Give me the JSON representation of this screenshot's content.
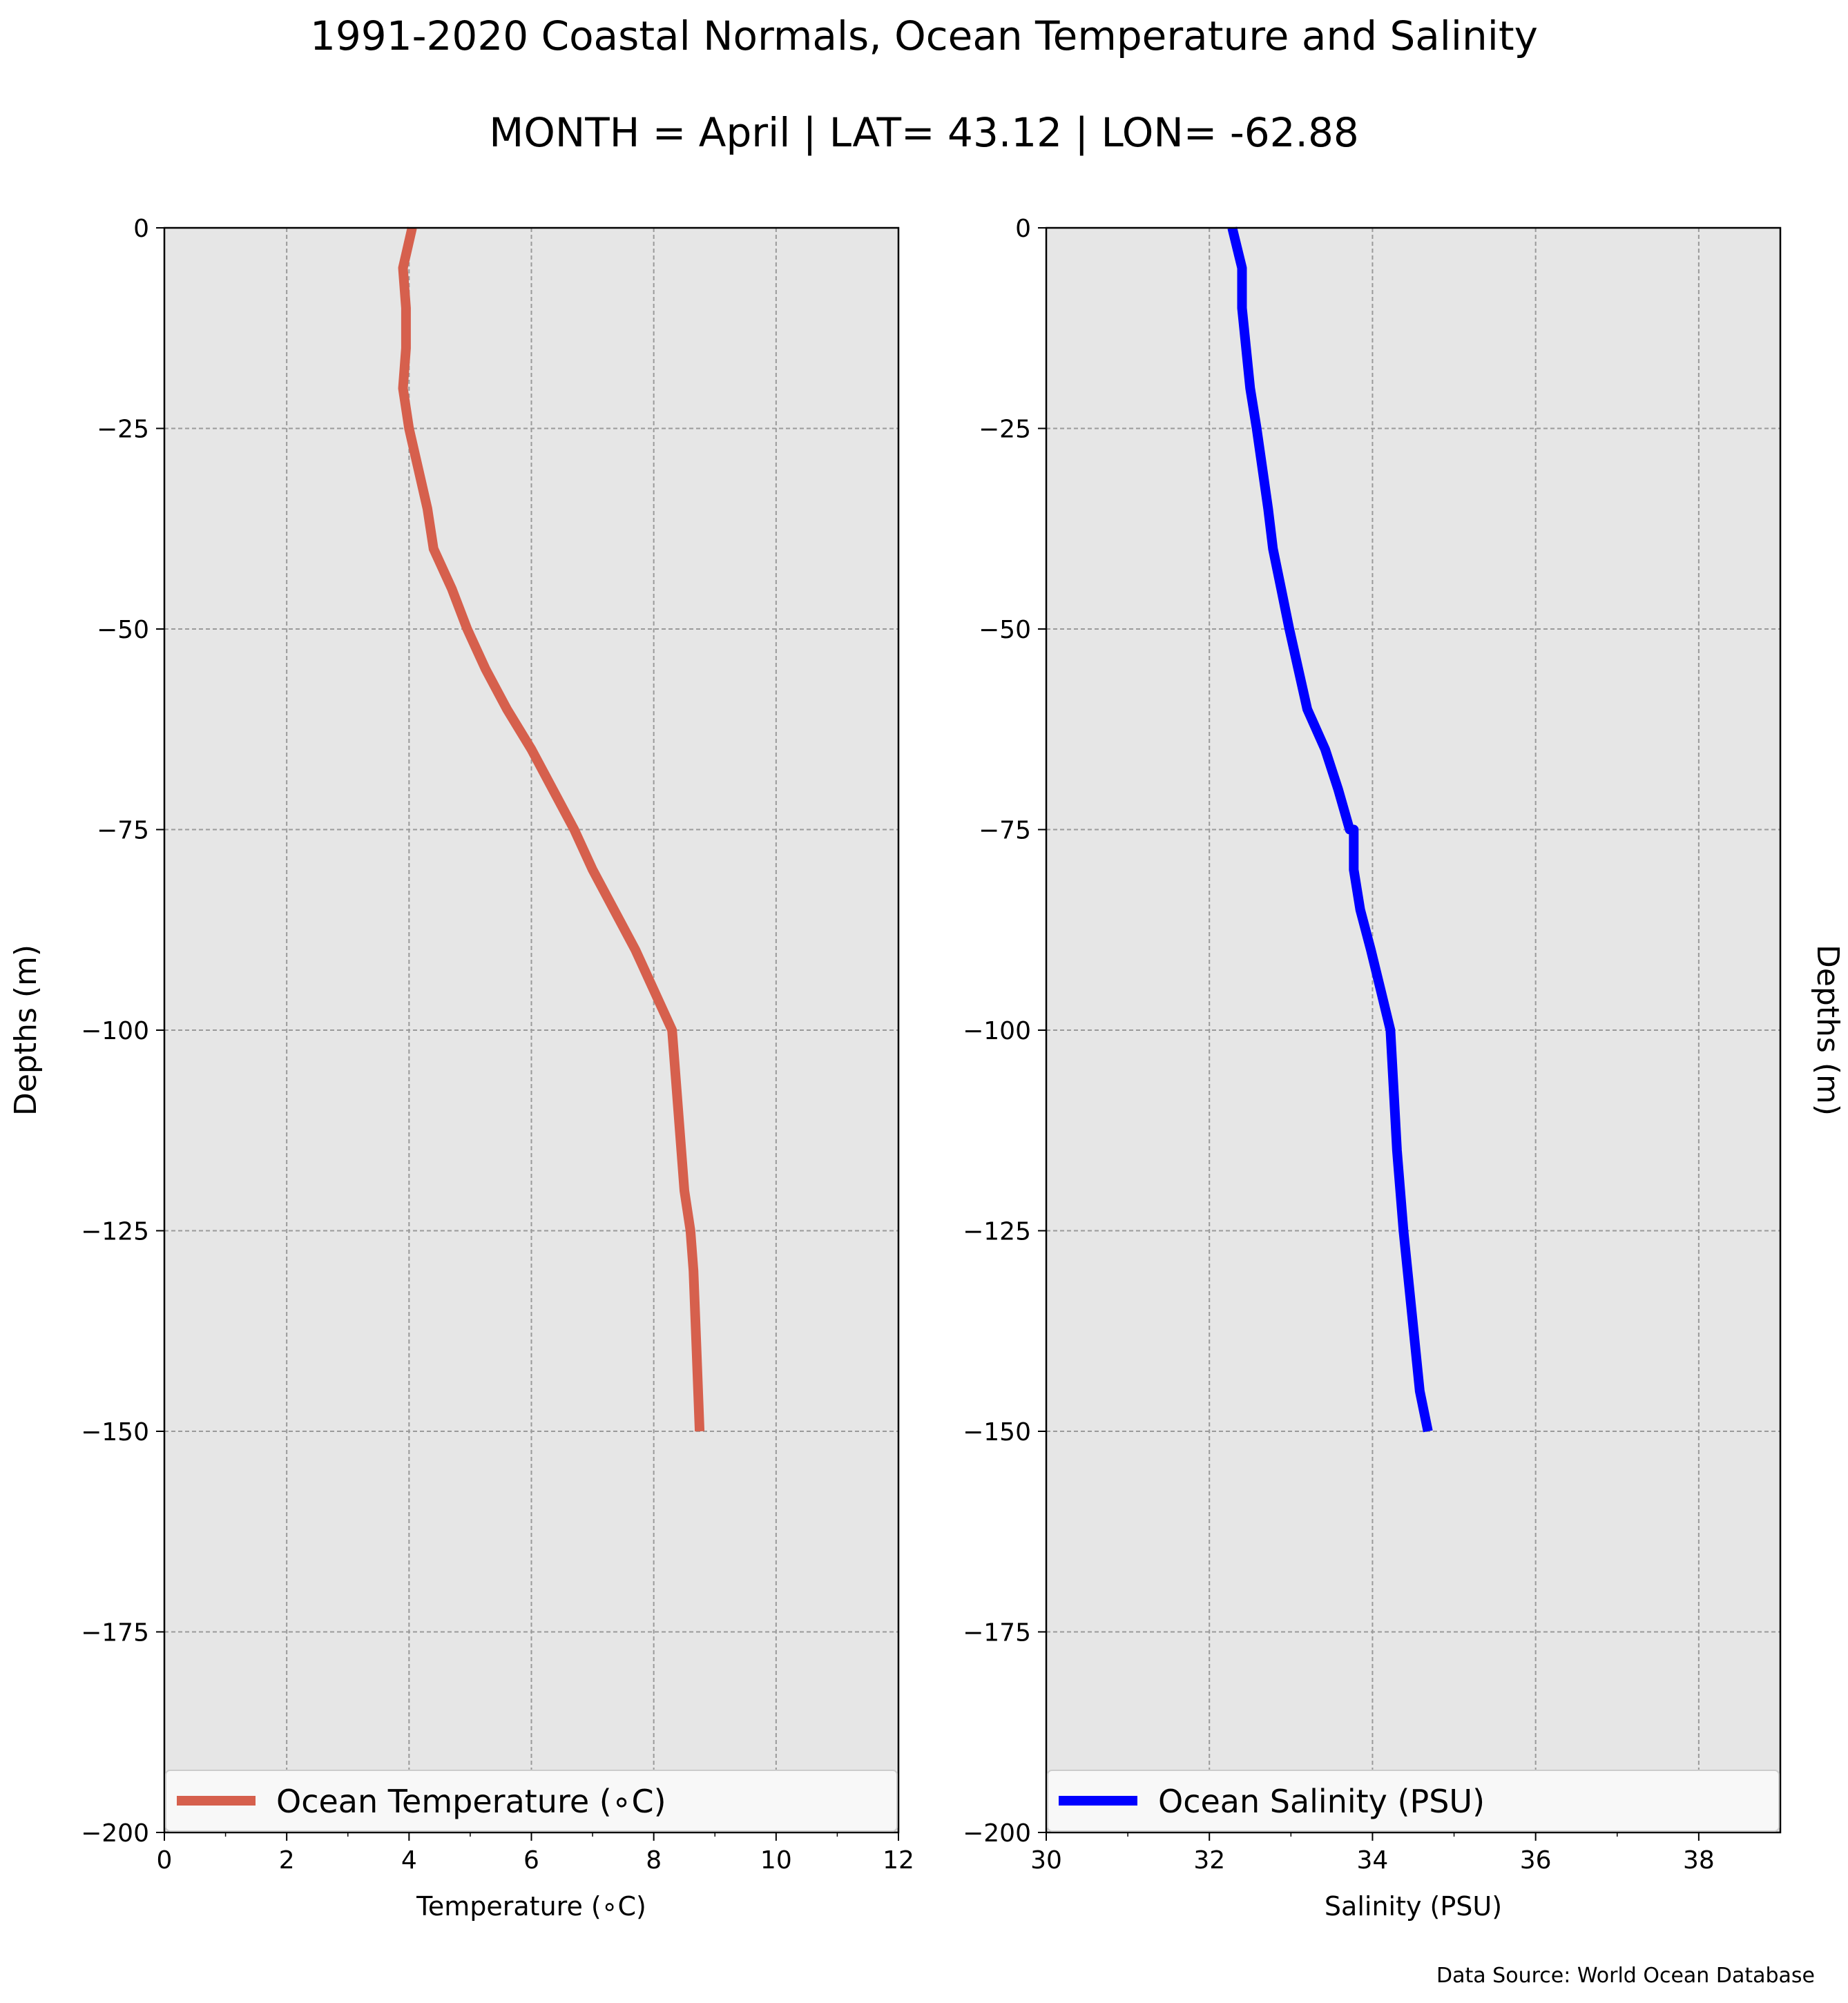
{
  "title": "1991-2020 Coastal Normals, Ocean Temperature and Salinity",
  "subtitle": "MONTH = April | LAT= 43.12 | LON= -62.88",
  "footnote": "Data Source: World Ocean Database",
  "chart_data": [
    {
      "type": "line",
      "xlabel": "Temperature (∘C)",
      "ylabel": "Depths (m)",
      "xlim": [
        0,
        12
      ],
      "ylim": [
        -200,
        0
      ],
      "xticks": [
        "0",
        "2",
        "4",
        "6",
        "8",
        "10",
        "12"
      ],
      "yticks": [
        "0",
        "−25",
        "−50",
        "−75",
        "−100",
        "−125",
        "−150",
        "−175",
        "−200"
      ],
      "grid": true,
      "legend_position": "bottom",
      "series": [
        {
          "name": "Ocean Temperature (∘C)",
          "color": "#d6604d",
          "x": [
            4.05,
            3.9,
            3.95,
            3.95,
            3.9,
            4.0,
            4.15,
            4.3,
            4.4,
            4.7,
            4.95,
            5.25,
            5.6,
            6.0,
            6.35,
            6.7,
            7.0,
            7.35,
            7.7,
            8.0,
            8.3,
            8.4,
            8.5,
            8.6,
            8.65,
            8.7,
            8.75
          ],
          "y": [
            0,
            -5,
            -10,
            -15,
            -20,
            -25,
            -30,
            -35,
            -40,
            -45,
            -50,
            -55,
            -60,
            -65,
            -70,
            -75,
            -80,
            -85,
            -90,
            -95,
            -100,
            -110,
            -120,
            -125,
            -130,
            -140,
            -150
          ]
        }
      ]
    },
    {
      "type": "line",
      "xlabel": "Salinity (PSU)",
      "ylabel": "Depths (m)",
      "xlim": [
        30,
        39
      ],
      "ylim": [
        -200,
        0
      ],
      "xticks": [
        "30",
        "32",
        "34",
        "36",
        "38"
      ],
      "yticks": [
        "0",
        "−25",
        "−50",
        "−75",
        "−100",
        "−125",
        "−150",
        "−175",
        "−200"
      ],
      "grid": true,
      "legend_position": "bottom",
      "series": [
        {
          "name": "Ocean Salinity (PSU)",
          "color": "#0000ff",
          "x": [
            32.28,
            32.4,
            32.4,
            32.45,
            32.5,
            32.58,
            32.65,
            32.72,
            32.78,
            32.88,
            32.98,
            33.09,
            33.2,
            33.42,
            33.58,
            33.72,
            33.77,
            33.77,
            33.85,
            33.98,
            34.1,
            34.22,
            34.3,
            34.38,
            34.48,
            34.58,
            34.68
          ],
          "y": [
            0,
            -5,
            -10,
            -15,
            -20,
            -25,
            -30,
            -35,
            -40,
            -45,
            -50,
            -55,
            -60,
            -65,
            -70,
            -75,
            -75,
            -80,
            -85,
            -90,
            -95,
            -100,
            -115,
            -125,
            -135,
            -145,
            -150
          ]
        }
      ]
    }
  ]
}
